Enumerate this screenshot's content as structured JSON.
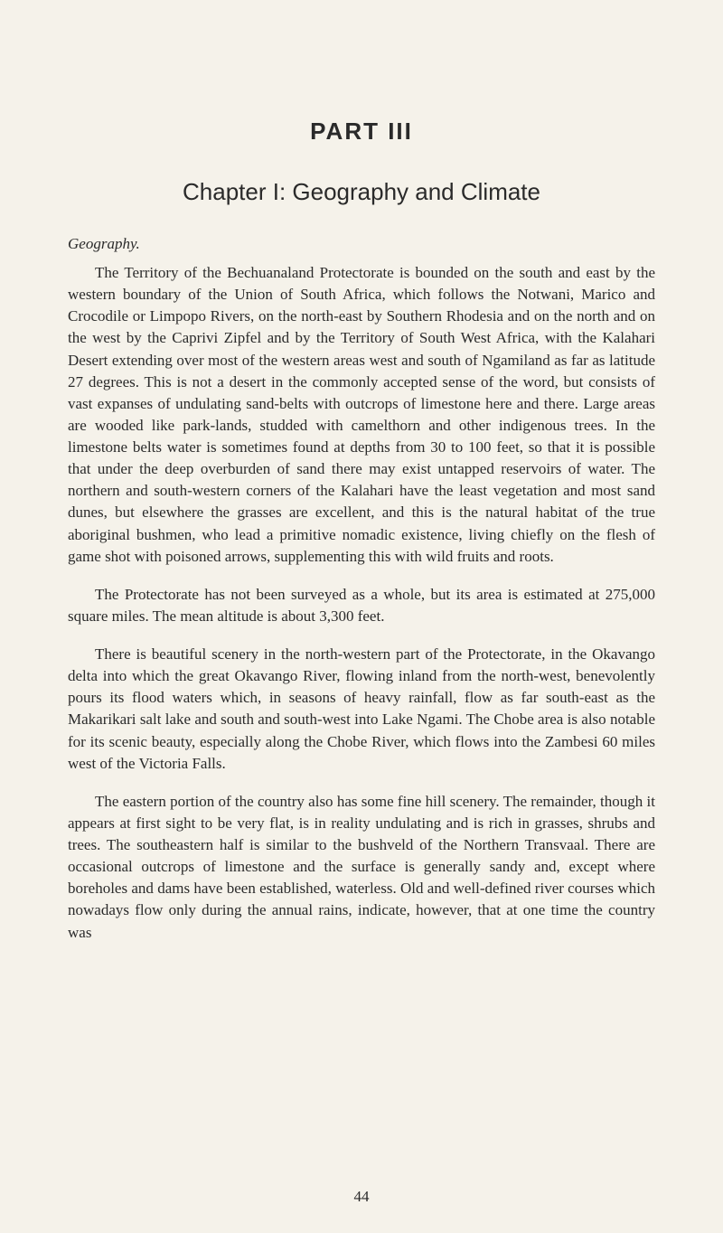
{
  "part_title": "PART III",
  "chapter_title": "Chapter I: Geography and Climate",
  "section_heading": "Geography.",
  "paragraphs": {
    "p1": "The Territory of the Bechuanaland Protectorate is bounded on the south and east by the western boundary of the Union of South Africa, which follows the Notwani, Marico and Crocodile or Limpopo Rivers, on the north-east by Southern Rhodesia and on the north and on the west by the Caprivi Zipfel and by the Territory of South West Africa, with the Kalahari Desert extending over most of the western areas west and south of Ngamiland as far as latitude 27 degrees. This is not a desert in the commonly accepted sense of the word, but consists of vast expanses of undulating sand-belts with outcrops of limestone here and there. Large areas are wooded like park-lands, studded with camelthorn and other indigenous trees. In the limestone belts water is sometimes found at depths from 30 to 100 feet, so that it is possible that under the deep overburden of sand there may exist untapped reservoirs of water. The northern and south-western corners of the Kalahari have the least vegetation and most sand dunes, but elsewhere the grasses are excellent, and this is the natural habitat of the true aboriginal bush­men, who lead a primitive nomadic existence, living chiefly on the flesh of game shot with poisoned arrows, supplementing this with wild fruits and roots.",
    "p2": "The Protectorate has not been surveyed as a whole, but its area is estimated at 275,000 square miles. The mean altitude is about 3,300 feet.",
    "p3": "There is beautiful scenery in the north-western part of the Pro­tectorate, in the Okavango delta into which the great Okavango River, flowing inland from the north-west, benevolently pours its flood waters which, in seasons of heavy rainfall, flow as far south-east as the Makarikari salt lake and south and south-west into Lake Ngami. The Chobe area is also notable for its scenic beauty, especially along the Chobe River, which flows into the Zambesi 60 miles west of the Victoria Falls.",
    "p4": "The eastern portion of the country also has some fine hill scenery. The remainder, though it appears at first sight to be very flat, is in reality undulating and is rich in grasses, shrubs and trees. The south­eastern half is similar to the bushveld of the Northern Transvaal. There are occasional outcrops of limestone and the surface is generally sandy and, except where boreholes and dams have been established, waterless. Old and well-defined river courses which nowadays flow only during the annual rains, indicate, however, that at one time the country was"
  },
  "page_number": "44"
}
